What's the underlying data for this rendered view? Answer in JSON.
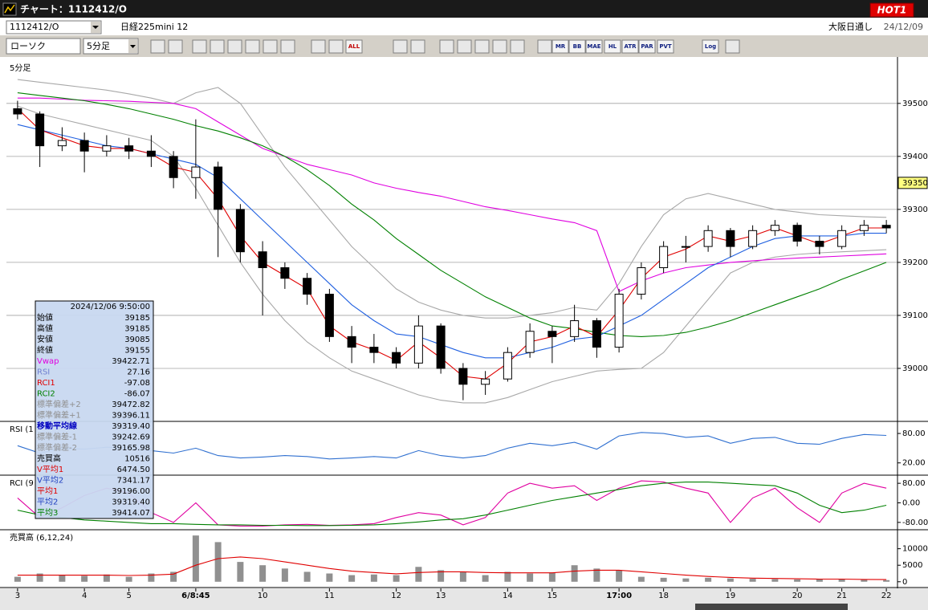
{
  "window": {
    "title": "チャート：1112412/O",
    "hot_button": "HOT1",
    "symbol": "1112412/O",
    "name": "日経225mini 12",
    "market": "大阪日通し",
    "date": "24/12/09"
  },
  "toolbar": {
    "chart_type": "ローソク",
    "interval": "5分足",
    "buttons": [
      "ALL",
      "MR",
      "BB",
      "MAE",
      "HL",
      "ATR",
      "PAR",
      "PVT",
      "Log"
    ]
  },
  "info_box": {
    "datetime": "2024/12/06 9:50:00",
    "rows": [
      {
        "label": "始値",
        "value": "39185",
        "color": "#000000"
      },
      {
        "label": "高値",
        "value": "39185",
        "color": "#000000"
      },
      {
        "label": "安値",
        "value": "39085",
        "color": "#000000"
      },
      {
        "label": "終値",
        "value": "39155",
        "color": "#000000"
      },
      {
        "label": "Vwap",
        "value": "39422.71",
        "color": "#e000e0"
      },
      {
        "label": "RSI",
        "value": "27.16",
        "color": "#7080d0"
      },
      {
        "label": "RCI1",
        "value": "-97.08",
        "color": "#e00000"
      },
      {
        "label": "RCI2",
        "value": "-86.07",
        "color": "#008000"
      },
      {
        "label": "標準偏差+2",
        "value": "39472.82",
        "color": "#909090"
      },
      {
        "label": "標準偏差+1",
        "value": "39396.11",
        "color": "#909090"
      },
      {
        "label": "移動平均線",
        "value": "39319.40",
        "color": "#0000c0"
      },
      {
        "label": "標準偏差-1",
        "value": "39242.69",
        "color": "#909090"
      },
      {
        "label": "標準偏差-2",
        "value": "39165.98",
        "color": "#909090"
      },
      {
        "label": "売買高",
        "value": "10516",
        "color": "#000000"
      },
      {
        "label": "V平均1",
        "value": "6474.50",
        "color": "#e00000"
      },
      {
        "label": "V平均2",
        "value": "7341.17",
        "color": "#2040c0"
      },
      {
        "label": "平均1",
        "value": "39196.00",
        "color": "#e00000"
      },
      {
        "label": "平均2",
        "value": "39319.40",
        "color": "#2040c0"
      },
      {
        "label": "平均3",
        "value": "39414.07",
        "color": "#008000"
      }
    ]
  },
  "chart_data": [
    {
      "type": "candlestick",
      "title": "5分足",
      "ylim": [
        38900,
        39580
      ],
      "yticks": [
        39000,
        39100,
        39200,
        39300,
        39400,
        39500
      ],
      "last_price": 39350,
      "grid": true,
      "ohlc": [
        [
          39490,
          39505,
          39470,
          39480
        ],
        [
          39480,
          39485,
          39380,
          39420
        ],
        [
          39420,
          39455,
          39410,
          39430
        ],
        [
          39430,
          39445,
          39370,
          39410
        ],
        [
          39410,
          39440,
          39400,
          39420
        ],
        [
          39420,
          39435,
          39395,
          39410
        ],
        [
          39410,
          39440,
          39380,
          39400
        ],
        [
          39400,
          39410,
          39340,
          39360
        ],
        [
          39360,
          39470,
          39320,
          39380
        ],
        [
          39380,
          39390,
          39210,
          39300
        ],
        [
          39300,
          39310,
          39200,
          39220
        ],
        [
          39220,
          39240,
          39100,
          39190
        ],
        [
          39190,
          39200,
          39150,
          39170
        ],
        [
          39170,
          39180,
          39120,
          39140
        ],
        [
          39140,
          39150,
          39050,
          39060
        ],
        [
          39060,
          39080,
          39010,
          39040
        ],
        [
          39040,
          39065,
          39010,
          39030
        ],
        [
          39030,
          39040,
          39000,
          39010
        ],
        [
          39010,
          39100,
          39000,
          39080
        ],
        [
          39080,
          39085,
          38990,
          39000
        ],
        [
          39000,
          39010,
          38940,
          38970
        ],
        [
          38970,
          38995,
          38950,
          38980
        ],
        [
          38980,
          39040,
          38975,
          39030
        ],
        [
          39030,
          39085,
          39020,
          39070
        ],
        [
          39070,
          39080,
          39010,
          39060
        ],
        [
          39060,
          39120,
          39050,
          39090
        ],
        [
          39090,
          39095,
          39020,
          39040
        ],
        [
          39040,
          39150,
          39030,
          39140
        ],
        [
          39140,
          39200,
          39130,
          39190
        ],
        [
          39190,
          39240,
          39180,
          39230
        ],
        [
          39230,
          39250,
          39200,
          39230
        ],
        [
          39230,
          39270,
          39220,
          39260
        ],
        [
          39260,
          39265,
          39210,
          39230
        ],
        [
          39230,
          39270,
          39225,
          39260
        ],
        [
          39260,
          39280,
          39250,
          39270
        ],
        [
          39270,
          39275,
          39230,
          39240
        ],
        [
          39240,
          39250,
          39215,
          39230
        ],
        [
          39230,
          39270,
          39225,
          39260
        ],
        [
          39260,
          39280,
          39250,
          39270
        ],
        [
          39270,
          39280,
          39255,
          39265
        ]
      ],
      "lines": [
        {
          "color": "#a8a8a8",
          "values": [
            39545,
            39540,
            39535,
            39530,
            39525,
            39518,
            39510,
            39500,
            39520,
            39530,
            39500,
            39440,
            39380,
            39330,
            39280,
            39230,
            39190,
            39150,
            39125,
            39110,
            39100,
            39095,
            39095,
            39100,
            39105,
            39115,
            39110,
            39160,
            39230,
            39290,
            39320,
            39330,
            39320,
            39310,
            39300,
            39295,
            39290,
            39288,
            39286,
            39285
          ]
        },
        {
          "color": "#a8a8a8",
          "values": [
            39495,
            39480,
            39470,
            39460,
            39450,
            39440,
            39430,
            39400,
            39340,
            39270,
            39200,
            39140,
            39090,
            39050,
            39020,
            38995,
            38980,
            38965,
            38950,
            38940,
            38935,
            38935,
            38945,
            38960,
            38975,
            38985,
            38995,
            38998,
            39000,
            39030,
            39080,
            39130,
            39180,
            39200,
            39210,
            39215,
            39218,
            39220,
            39222,
            39224
          ]
        },
        {
          "color": "#e000e0",
          "values": [
            39510,
            39510,
            39508,
            39506,
            39505,
            39504,
            39502,
            39500,
            39490,
            39465,
            39440,
            39415,
            39400,
            39385,
            39375,
            39365,
            39350,
            39340,
            39332,
            39325,
            39315,
            39305,
            39298,
            39290,
            39282,
            39275,
            39260,
            39145,
            39165,
            39180,
            39190,
            39195,
            39200,
            39203,
            39206,
            39208,
            39210,
            39212,
            39214,
            39216
          ]
        },
        {
          "color": "#008000",
          "values": [
            39520,
            39515,
            39510,
            39505,
            39498,
            39490,
            39480,
            39470,
            39458,
            39448,
            39435,
            39420,
            39400,
            39375,
            39345,
            39310,
            39280,
            39245,
            39215,
            39185,
            39160,
            39135,
            39115,
            39095,
            39080,
            39075,
            39068,
            39062,
            39060,
            39062,
            39068,
            39078,
            39090,
            39105,
            39120,
            39135,
            39150,
            39168,
            39184,
            39200
          ]
        },
        {
          "color": "#2060e0",
          "values": [
            39460,
            39450,
            39440,
            39430,
            39420,
            39415,
            39405,
            39395,
            39385,
            39360,
            39320,
            39280,
            39240,
            39200,
            39160,
            39120,
            39090,
            39065,
            39060,
            39045,
            39030,
            39020,
            39020,
            39030,
            39040,
            39055,
            39060,
            39080,
            39100,
            39130,
            39160,
            39190,
            39210,
            39230,
            39245,
            39250,
            39250,
            39250,
            39255,
            39255
          ]
        },
        {
          "color": "#e00000",
          "values": [
            39490,
            39450,
            39435,
            39420,
            39415,
            39415,
            39405,
            39380,
            39370,
            39320,
            39250,
            39200,
            39175,
            39150,
            39080,
            39050,
            39035,
            39015,
            39050,
            39020,
            38985,
            38980,
            39010,
            39050,
            39060,
            39080,
            39060,
            39110,
            39170,
            39210,
            39225,
            39250,
            39240,
            39250,
            39265,
            39250,
            39235,
            39250,
            39265,
            39265
          ]
        }
      ]
    },
    {
      "type": "line",
      "title": "RSI (1",
      "ylim": [
        -5,
        103
      ],
      "yticks": [
        {
          "value": 80,
          "label": "80.00"
        },
        {
          "value": 20,
          "label": "20.00"
        }
      ],
      "series": [
        {
          "color": "#3070d0",
          "values": [
            55,
            40,
            50,
            48,
            52,
            50,
            45,
            40,
            50,
            35,
            30,
            32,
            35,
            33,
            28,
            30,
            33,
            30,
            45,
            35,
            30,
            35,
            50,
            60,
            55,
            62,
            48,
            75,
            82,
            80,
            72,
            75,
            60,
            70,
            72,
            60,
            58,
            70,
            78,
            76
          ]
        }
      ]
    },
    {
      "type": "line",
      "title": "RCI (9",
      "ylim": [
        -110,
        110
      ],
      "yticks": [
        {
          "value": 80,
          "label": "80.00"
        },
        {
          "value": 0,
          "label": "0.00"
        },
        {
          "value": -80,
          "label": "-80.00"
        }
      ],
      "series": [
        {
          "color": "#e000a0",
          "values": [
            20,
            -60,
            -20,
            30,
            60,
            40,
            -40,
            -80,
            0,
            -90,
            -95,
            -95,
            -90,
            -88,
            -92,
            -90,
            -85,
            -60,
            -40,
            -50,
            -90,
            -60,
            40,
            80,
            60,
            70,
            10,
            60,
            90,
            85,
            60,
            40,
            -80,
            20,
            60,
            -20,
            -80,
            40,
            80,
            60
          ]
        },
        {
          "color": "#008000",
          "values": [
            -30,
            -50,
            -60,
            -70,
            -75,
            -80,
            -85,
            -85,
            -88,
            -90,
            -90,
            -92,
            -92,
            -93,
            -93,
            -92,
            -90,
            -85,
            -78,
            -70,
            -65,
            -50,
            -30,
            -10,
            10,
            25,
            40,
            55,
            70,
            80,
            85,
            85,
            80,
            75,
            70,
            40,
            -10,
            -40,
            -30,
            -10
          ]
        }
      ]
    },
    {
      "type": "bar",
      "title": "売買高 (6,12,24)",
      "ylim": [
        -1750,
        15500
      ],
      "yticks": [
        10000,
        5000,
        0
      ],
      "color": "#909090",
      "categories": [
        "3",
        null,
        null,
        "4",
        null,
        "5",
        null,
        null,
        "6/8:45",
        null,
        null,
        "10",
        null,
        null,
        "11",
        null,
        null,
        "12",
        null,
        "13",
        null,
        null,
        "14",
        null,
        "15",
        null,
        null,
        "17:00",
        null,
        "18",
        null,
        null,
        "19",
        null,
        null,
        "20",
        null,
        "21",
        null,
        "22"
      ],
      "values": [
        1500,
        2500,
        2000,
        1800,
        2200,
        1500,
        2500,
        3000,
        14000,
        12000,
        6000,
        5000,
        4000,
        3000,
        2500,
        2000,
        2200,
        2000,
        4500,
        3500,
        3000,
        2000,
        3000,
        2500,
        2800,
        5000,
        4000,
        3500,
        1500,
        1200,
        1000,
        1200,
        1000,
        900,
        800,
        700,
        700,
        800,
        600,
        500
      ],
      "lines": [
        {
          "color": "#e00000",
          "values": [
            2000,
            2000,
            2000,
            2000,
            2000,
            1900,
            2000,
            2300,
            5000,
            7000,
            7500,
            7000,
            6000,
            5000,
            4000,
            3200,
            2800,
            2400,
            2800,
            3000,
            3000,
            2800,
            2700,
            2700,
            2700,
            3200,
            3500,
            3500,
            3000,
            2500,
            2000,
            1600,
            1300,
            1100,
            1000,
            900,
            800,
            800,
            700,
            650
          ]
        }
      ]
    }
  ]
}
